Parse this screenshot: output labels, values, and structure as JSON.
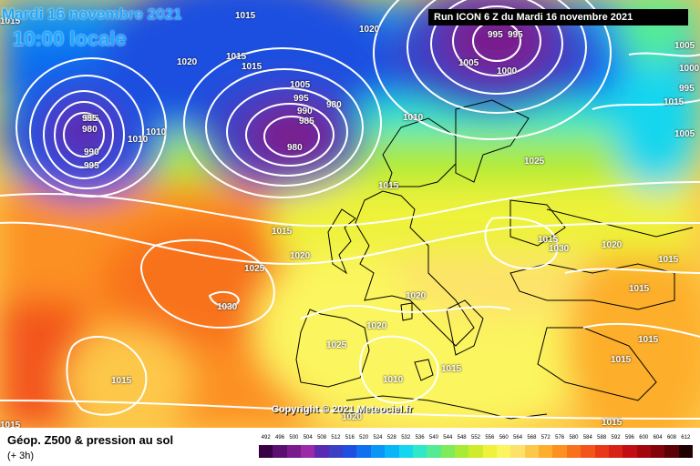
{
  "header": {
    "date": "Mardi 16 novembre 2021",
    "time": "10:00 locale",
    "run": "Run ICON 6 Z du Mardi 16 novembre 2021"
  },
  "copyright": "Copyright © 2021 Meteociel.fr",
  "legend": {
    "title": "Géop. Z500 & pression au sol",
    "subtitle": "(+ 3h)",
    "ticks": [
      "492",
      "496",
      "500",
      "504",
      "508",
      "512",
      "516",
      "520",
      "524",
      "528",
      "532",
      "536",
      "540",
      "544",
      "548",
      "552",
      "556",
      "560",
      "564",
      "568",
      "572",
      "576",
      "580",
      "584",
      "588",
      "592",
      "596",
      "600",
      "604",
      "608",
      "612"
    ],
    "colors": [
      "#3a0045",
      "#5b0f6e",
      "#7a1b8d",
      "#9a2aa8",
      "#5b2ab2",
      "#3b3fc4",
      "#1f4fe0",
      "#1070f0",
      "#0a96f5",
      "#08b6f7",
      "#15d6ee",
      "#2ee8c8",
      "#55eb95",
      "#7fea5a",
      "#a9ea34",
      "#cfeb2c",
      "#eef23a",
      "#fbf55f",
      "#fde26a",
      "#fdc84a",
      "#fdae2c",
      "#fc9020",
      "#f8721c",
      "#f3541a",
      "#e83818",
      "#d82216",
      "#c20e12",
      "#a3070e",
      "#82040a",
      "#5b0206",
      "#200000"
    ]
  },
  "isobar_labels": [
    {
      "text": "1015"
    },
    {
      "text": "1015"
    },
    {
      "text": "1020"
    },
    {
      "text": "1020"
    },
    {
      "text": "1015"
    },
    {
      "text": "1015"
    },
    {
      "text": "1010"
    },
    {
      "text": "1005"
    },
    {
      "text": "995"
    },
    {
      "text": "990"
    },
    {
      "text": "985"
    },
    {
      "text": "980"
    },
    {
      "text": "985"
    },
    {
      "text": "990"
    },
    {
      "text": "995"
    },
    {
      "text": "1010"
    },
    {
      "text": "1005"
    },
    {
      "text": "1000"
    },
    {
      "text": "995"
    },
    {
      "text": "985"
    },
    {
      "text": "980"
    },
    {
      "text": "980"
    },
    {
      "text": "1010"
    },
    {
      "text": "1025"
    },
    {
      "text": "1015"
    },
    {
      "text": "1015"
    },
    {
      "text": "1020"
    },
    {
      "text": "1025"
    },
    {
      "text": "1030"
    },
    {
      "text": "1020"
    },
    {
      "text": "1020"
    },
    {
      "text": "1025"
    },
    {
      "text": "1015"
    },
    {
      "text": "1010"
    },
    {
      "text": "1015"
    },
    {
      "text": "1020"
    },
    {
      "text": "1015"
    },
    {
      "text": "1015"
    },
    {
      "text": "1030"
    },
    {
      "text": "1020"
    },
    {
      "text": "1015"
    },
    {
      "text": "1015"
    },
    {
      "text": "1015"
    },
    {
      "text": "1015"
    },
    {
      "text": "1015"
    },
    {
      "text": "1005"
    },
    {
      "text": "1015"
    },
    {
      "text": "995"
    },
    {
      "text": "995"
    },
    {
      "text": "1005"
    },
    {
      "text": "1000"
    }
  ]
}
